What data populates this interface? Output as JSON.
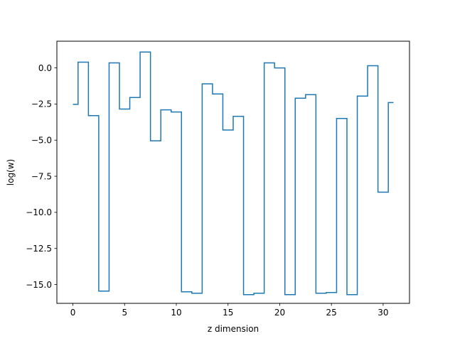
{
  "chart_data": {
    "type": "line",
    "drawstyle": "steps-mid",
    "title": "",
    "xlabel": "z dimension",
    "ylabel": "log(w)",
    "xlim": [
      -1.55,
      32.55
    ],
    "ylim": [
      -16.3,
      1.85
    ],
    "xticks": [
      0,
      5,
      10,
      15,
      20,
      25,
      30
    ],
    "xtick_labels": [
      "0",
      "5",
      "10",
      "15",
      "20",
      "25",
      "30"
    ],
    "yticks": [
      0.0,
      -2.5,
      -5.0,
      -7.5,
      -10.0,
      -12.5,
      -15.0
    ],
    "ytick_labels": [
      "0.0",
      "−2.5",
      "−5.0",
      "−7.5",
      "−10.0",
      "−12.5",
      "−15.0"
    ],
    "grid": false,
    "legend": false,
    "series": [
      {
        "color": "#1f77b4",
        "x": [
          0,
          1,
          2,
          3,
          4,
          5,
          6,
          7,
          8,
          9,
          10,
          11,
          12,
          13,
          14,
          15,
          16,
          17,
          18,
          19,
          20,
          21,
          22,
          23,
          24,
          25,
          26,
          27,
          28,
          29,
          30,
          31
        ],
        "values": [
          -2.52,
          0.4,
          -3.3,
          -15.45,
          0.35,
          -2.85,
          -2.05,
          1.1,
          -5.05,
          -2.9,
          -3.05,
          -15.5,
          -15.6,
          -1.1,
          -1.8,
          -4.3,
          -3.35,
          -15.7,
          -15.6,
          0.35,
          0.0,
          -15.7,
          -2.1,
          -1.85,
          -15.6,
          -15.55,
          -3.5,
          -15.7,
          -1.95,
          0.15,
          -8.6,
          -2.4
        ]
      }
    ]
  }
}
